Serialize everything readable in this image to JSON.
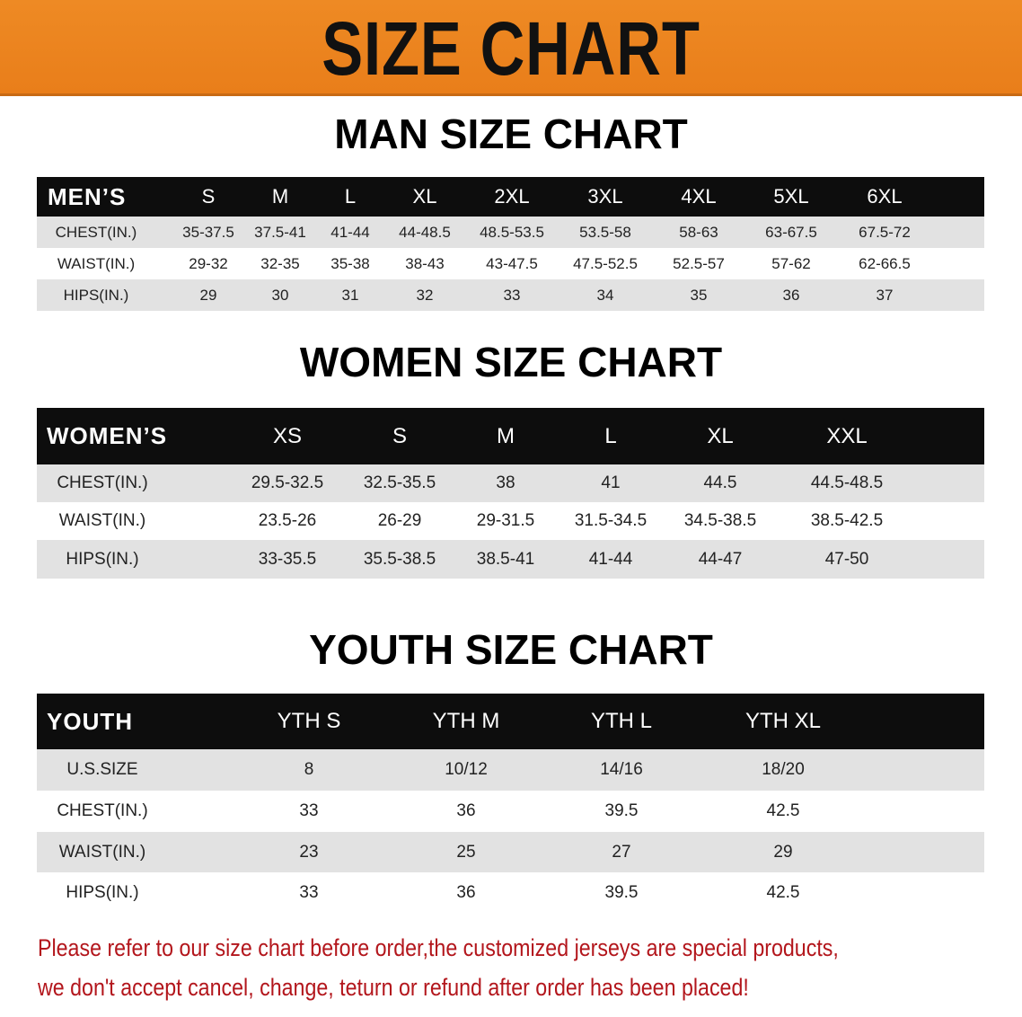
{
  "banner": {
    "title": "SIZE CHART",
    "color": "#ea8320"
  },
  "men": {
    "title": "MAN SIZE CHART",
    "header": [
      "MEN’S",
      "S",
      "M",
      "L",
      "XL",
      "2XL",
      "3XL",
      "4XL",
      "5XL",
      "6XL"
    ],
    "rows": [
      [
        "CHEST(IN.)",
        "35-37.5",
        "37.5-41",
        "41-44",
        "44-48.5",
        "48.5-53.5",
        "53.5-58",
        "58-63",
        "63-67.5",
        "67.5-72"
      ],
      [
        "WAIST(IN.)",
        "29-32",
        "32-35",
        "35-38",
        "38-43",
        "43-47.5",
        "47.5-52.5",
        "52.5-57",
        "57-62",
        "62-66.5"
      ],
      [
        "HIPS(IN.)",
        "29",
        "30",
        "31",
        "32",
        "33",
        "34",
        "35",
        "36",
        "37"
      ]
    ]
  },
  "women": {
    "title": "WOMEN SIZE CHART",
    "header": [
      "WOMEN’S",
      "XS",
      "S",
      "M",
      "L",
      "XL",
      "XXL"
    ],
    "rows": [
      [
        "CHEST(IN.)",
        "29.5-32.5",
        "32.5-35.5",
        "38",
        "41",
        "44.5",
        "44.5-48.5"
      ],
      [
        "WAIST(IN.)",
        "23.5-26",
        "26-29",
        "29-31.5",
        "31.5-34.5",
        "34.5-38.5",
        "38.5-42.5"
      ],
      [
        "HIPS(IN.)",
        "33-35.5",
        "35.5-38.5",
        "38.5-41",
        "41-44",
        "44-47",
        "47-50"
      ]
    ]
  },
  "youth": {
    "title": "YOUTH SIZE CHART",
    "header": [
      "YOUTH",
      "YTH S",
      "YTH M",
      "YTH L",
      "YTH XL"
    ],
    "rows": [
      [
        "U.S.SIZE",
        "8",
        "10/12",
        "14/16",
        "18/20"
      ],
      [
        "CHEST(IN.)",
        "33",
        "36",
        "39.5",
        "42.5"
      ],
      [
        "WAIST(IN.)",
        "23",
        "25",
        "27",
        "29"
      ],
      [
        "HIPS(IN.)",
        "33",
        "36",
        "39.5",
        "42.5"
      ]
    ]
  },
  "note": {
    "line1": "Please refer to our size chart before order,the customized jerseys are special products,",
    "line2": "we don't accept cancel, change, teturn or refund after order has been placed!",
    "color": "#b3161c"
  }
}
